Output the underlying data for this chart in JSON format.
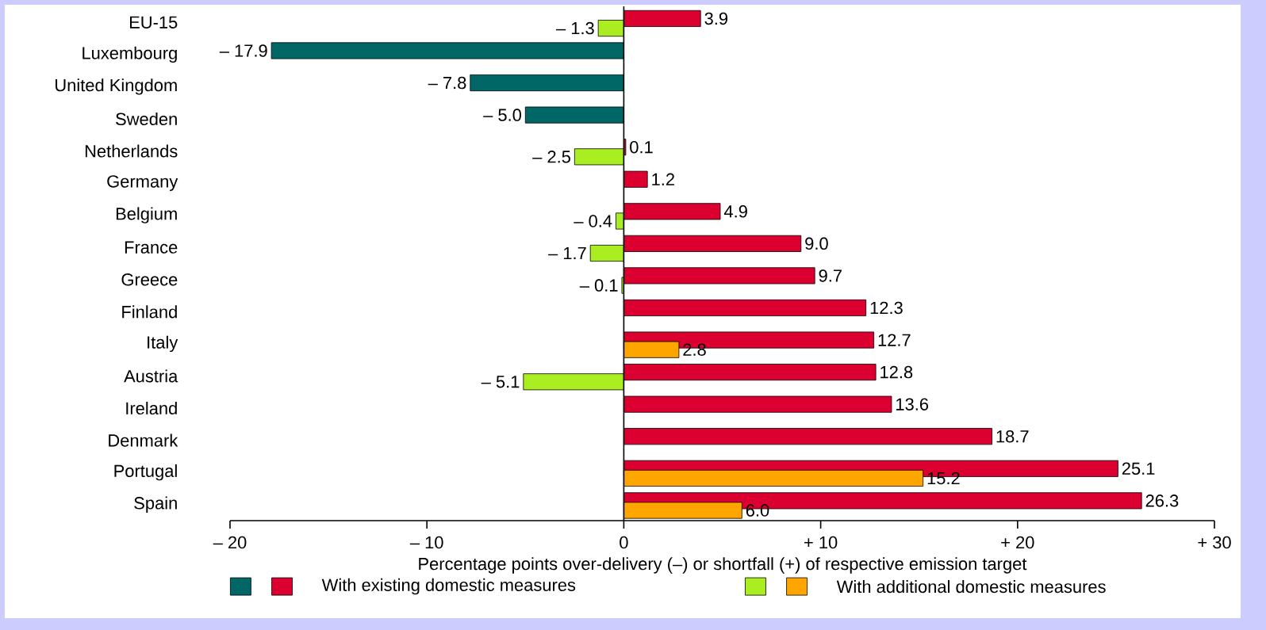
{
  "chart_data": {
    "type": "bar",
    "orientation": "horizontal",
    "categories": [
      "EU-15",
      "Luxembourg",
      "United Kingdom",
      "Sweden",
      "Netherlands",
      "Germany",
      "Belgium",
      "France",
      "Greece",
      "Finland",
      "Italy",
      "Austria",
      "Ireland",
      "Denmark",
      "Portugal",
      "Spain"
    ],
    "series": [
      {
        "name": "With existing domestic measures",
        "values": [
          3.9,
          -17.9,
          -7.8,
          -5.0,
          0.1,
          1.2,
          4.9,
          9.0,
          9.7,
          12.3,
          12.7,
          12.8,
          13.6,
          18.7,
          25.1,
          26.3
        ],
        "colors": [
          "#dc0030",
          "#006666",
          "#006666",
          "#006666",
          "#dc0030",
          "#dc0030",
          "#dc0030",
          "#dc0030",
          "#dc0030",
          "#dc0030",
          "#dc0030",
          "#dc0030",
          "#dc0030",
          "#dc0030",
          "#dc0030",
          "#dc0030"
        ],
        "value_labels": [
          "3.9",
          "– 17.9",
          "– 7.8",
          "– 5.0",
          "0.1",
          "1.2",
          "4.9",
          "9.0",
          "9.7",
          "12.3",
          "12.7",
          "12.8",
          "13.6",
          "18.7",
          "25.1",
          "26.3"
        ]
      },
      {
        "name": "With additional domestic measures",
        "values": [
          -1.3,
          null,
          null,
          null,
          -2.5,
          null,
          -0.4,
          -1.7,
          -0.1,
          null,
          2.8,
          -5.1,
          null,
          null,
          15.2,
          6.0
        ],
        "colors": [
          "#aaee22",
          null,
          null,
          null,
          "#aaee22",
          null,
          "#aaee22",
          "#aaee22",
          "#aaee22",
          null,
          "#ffa500",
          "#aaee22",
          null,
          null,
          "#ffa500",
          "#ffa500"
        ],
        "value_labels": [
          "– 1.3",
          null,
          null,
          null,
          "– 2.5",
          null,
          "– 0.4",
          "– 1.7",
          "– 0.1",
          null,
          "2.8",
          "– 5.1",
          null,
          null,
          "15.2",
          "6.0"
        ]
      }
    ],
    "xlim": [
      -20,
      30
    ],
    "xticks": [
      {
        "value": -20,
        "label": "– 20"
      },
      {
        "value": -10,
        "label": "– 10"
      },
      0,
      {
        "value": 10,
        "label": "+ 10"
      },
      {
        "value": 20,
        "label": "+ 20"
      },
      {
        "value": 30,
        "label": "+ 30"
      }
    ],
    "xlabel": "Percentage points over-delivery (–) or shortfall (+) of respective emission target",
    "legend": "bottom"
  }
}
